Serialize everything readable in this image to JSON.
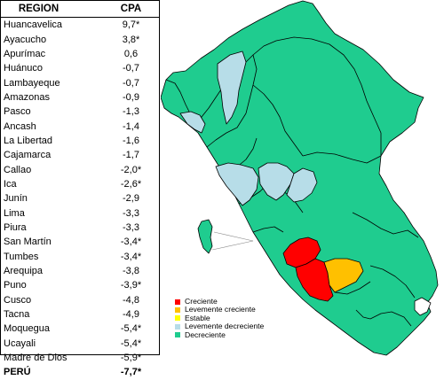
{
  "table": {
    "header": {
      "region": "REGION",
      "cpa": "CPA"
    },
    "rows": [
      {
        "region": "Huancavelica",
        "cpa": "9,7*"
      },
      {
        "region": "Ayacucho",
        "cpa": "3,8*"
      },
      {
        "region": "Apurímac",
        "cpa": "0,6"
      },
      {
        "region": "Huánuco",
        "cpa": "-0,7"
      },
      {
        "region": "Lambayeque",
        "cpa": "-0,7"
      },
      {
        "region": "Amazonas",
        "cpa": "-0,9"
      },
      {
        "region": "Pasco",
        "cpa": "-1,3"
      },
      {
        "region": "Ancash",
        "cpa": "-1,4"
      },
      {
        "region": "La Libertad",
        "cpa": "-1,6"
      },
      {
        "region": "Cajamarca",
        "cpa": "-1,7"
      },
      {
        "region": "Callao",
        "cpa": "-2,0*"
      },
      {
        "region": "Ica",
        "cpa": "-2,6*"
      },
      {
        "region": "Junín",
        "cpa": "-2,9"
      },
      {
        "region": "Lima",
        "cpa": "-3,3"
      },
      {
        "region": "Piura",
        "cpa": "-3,3"
      },
      {
        "region": "San Martín",
        "cpa": "-3,4*"
      },
      {
        "region": "Tumbes",
        "cpa": "-3,4*"
      },
      {
        "region": "Arequipa",
        "cpa": "-3,8"
      },
      {
        "region": "Puno",
        "cpa": "-3,9*"
      },
      {
        "region": "Cusco",
        "cpa": "-4,8"
      },
      {
        "region": "Tacna",
        "cpa": "-4,9"
      },
      {
        "region": "Moquegua",
        "cpa": "-5,4*"
      },
      {
        "region": "Ucayali",
        "cpa": "-5,4*"
      },
      {
        "region": "Madre de Dios",
        "cpa": "-5,9*"
      }
    ],
    "total": {
      "region": "PERÚ",
      "cpa": "-7,7*"
    }
  },
  "legend": [
    {
      "label": "Creciente",
      "color": "#ff0000"
    },
    {
      "label": "Levemente creciente",
      "color": "#ffc000"
    },
    {
      "label": "Estable",
      "color": "#ffff00"
    },
    {
      "label": "Levemente decreciente",
      "color": "#b7dde8"
    },
    {
      "label": "Decreciente",
      "color": "#1fcc8f"
    }
  ],
  "map_colors": {
    "decreciente": "#1fcc8f",
    "levemente_decreciente": "#b7dde8",
    "creciente": "#ff0000",
    "levemente_creciente": "#ffc000",
    "border": "#000000",
    "sea": "#ffffff"
  }
}
